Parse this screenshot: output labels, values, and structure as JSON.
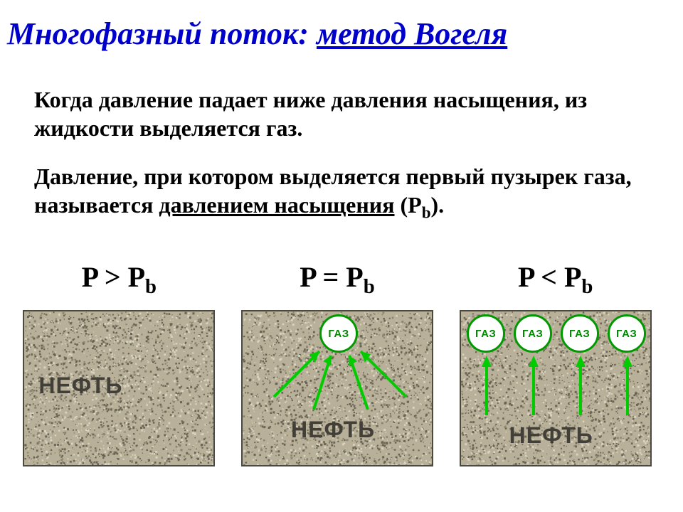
{
  "title_prefix": "Многофазный поток: ",
  "title_link": "метод Вогеля",
  "paragraph1": "Когда давление падает ниже давления насыщения, из жидкости выделяется газ.",
  "paragraph2_a": "Давление, при котором выделяется первый пузырек газа, называется ",
  "paragraph2_u": "давлением насыщения",
  "paragraph2_b": " (P",
  "paragraph2_sub": "b",
  "paragraph2_c": ").",
  "panels": [
    {
      "cond_a": "P > P",
      "cond_sub": "b",
      "oil": "НЕФТЬ",
      "bubbles": 0
    },
    {
      "cond_a": "P = P",
      "cond_sub": "b",
      "oil": "НЕФТЬ",
      "bubbles": 1,
      "gas": "ГАЗ"
    },
    {
      "cond_a": "P < P",
      "cond_sub": "b",
      "oil": "НЕФТЬ",
      "bubbles": 4,
      "gas": "ГАЗ"
    }
  ],
  "colors": {
    "title": "#0000cc",
    "text": "#000000",
    "bubble_border": "#009900",
    "bubble_text": "#008800",
    "arrow": "#00cc00",
    "oil": "#413f38",
    "rock_base": "#b8b098",
    "rock_dark": "#6a6554",
    "rock_light": "#d8d2c0"
  }
}
